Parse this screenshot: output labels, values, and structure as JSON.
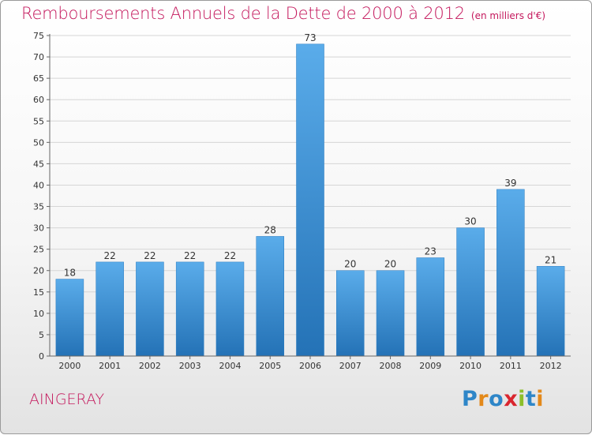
{
  "chart_data": {
    "type": "bar",
    "title": "Remboursements Annuels de la Dette de 2000 à 2012",
    "subtitle": "(en milliers d'€)",
    "categories": [
      "2000",
      "2001",
      "2002",
      "2003",
      "2004",
      "2005",
      "2006",
      "2007",
      "2008",
      "2009",
      "2010",
      "2011",
      "2012"
    ],
    "values": [
      18,
      22,
      22,
      22,
      22,
      28,
      73,
      20,
      20,
      23,
      30,
      39,
      21
    ],
    "ylim": [
      0,
      75
    ],
    "yticks": [
      0,
      5,
      10,
      15,
      20,
      25,
      30,
      35,
      40,
      45,
      50,
      55,
      60,
      65,
      70,
      75
    ],
    "grid": true,
    "bar_color": "#3a8fd5"
  },
  "footer": {
    "commune": "AINGERAY",
    "logo": "Proxiti"
  }
}
